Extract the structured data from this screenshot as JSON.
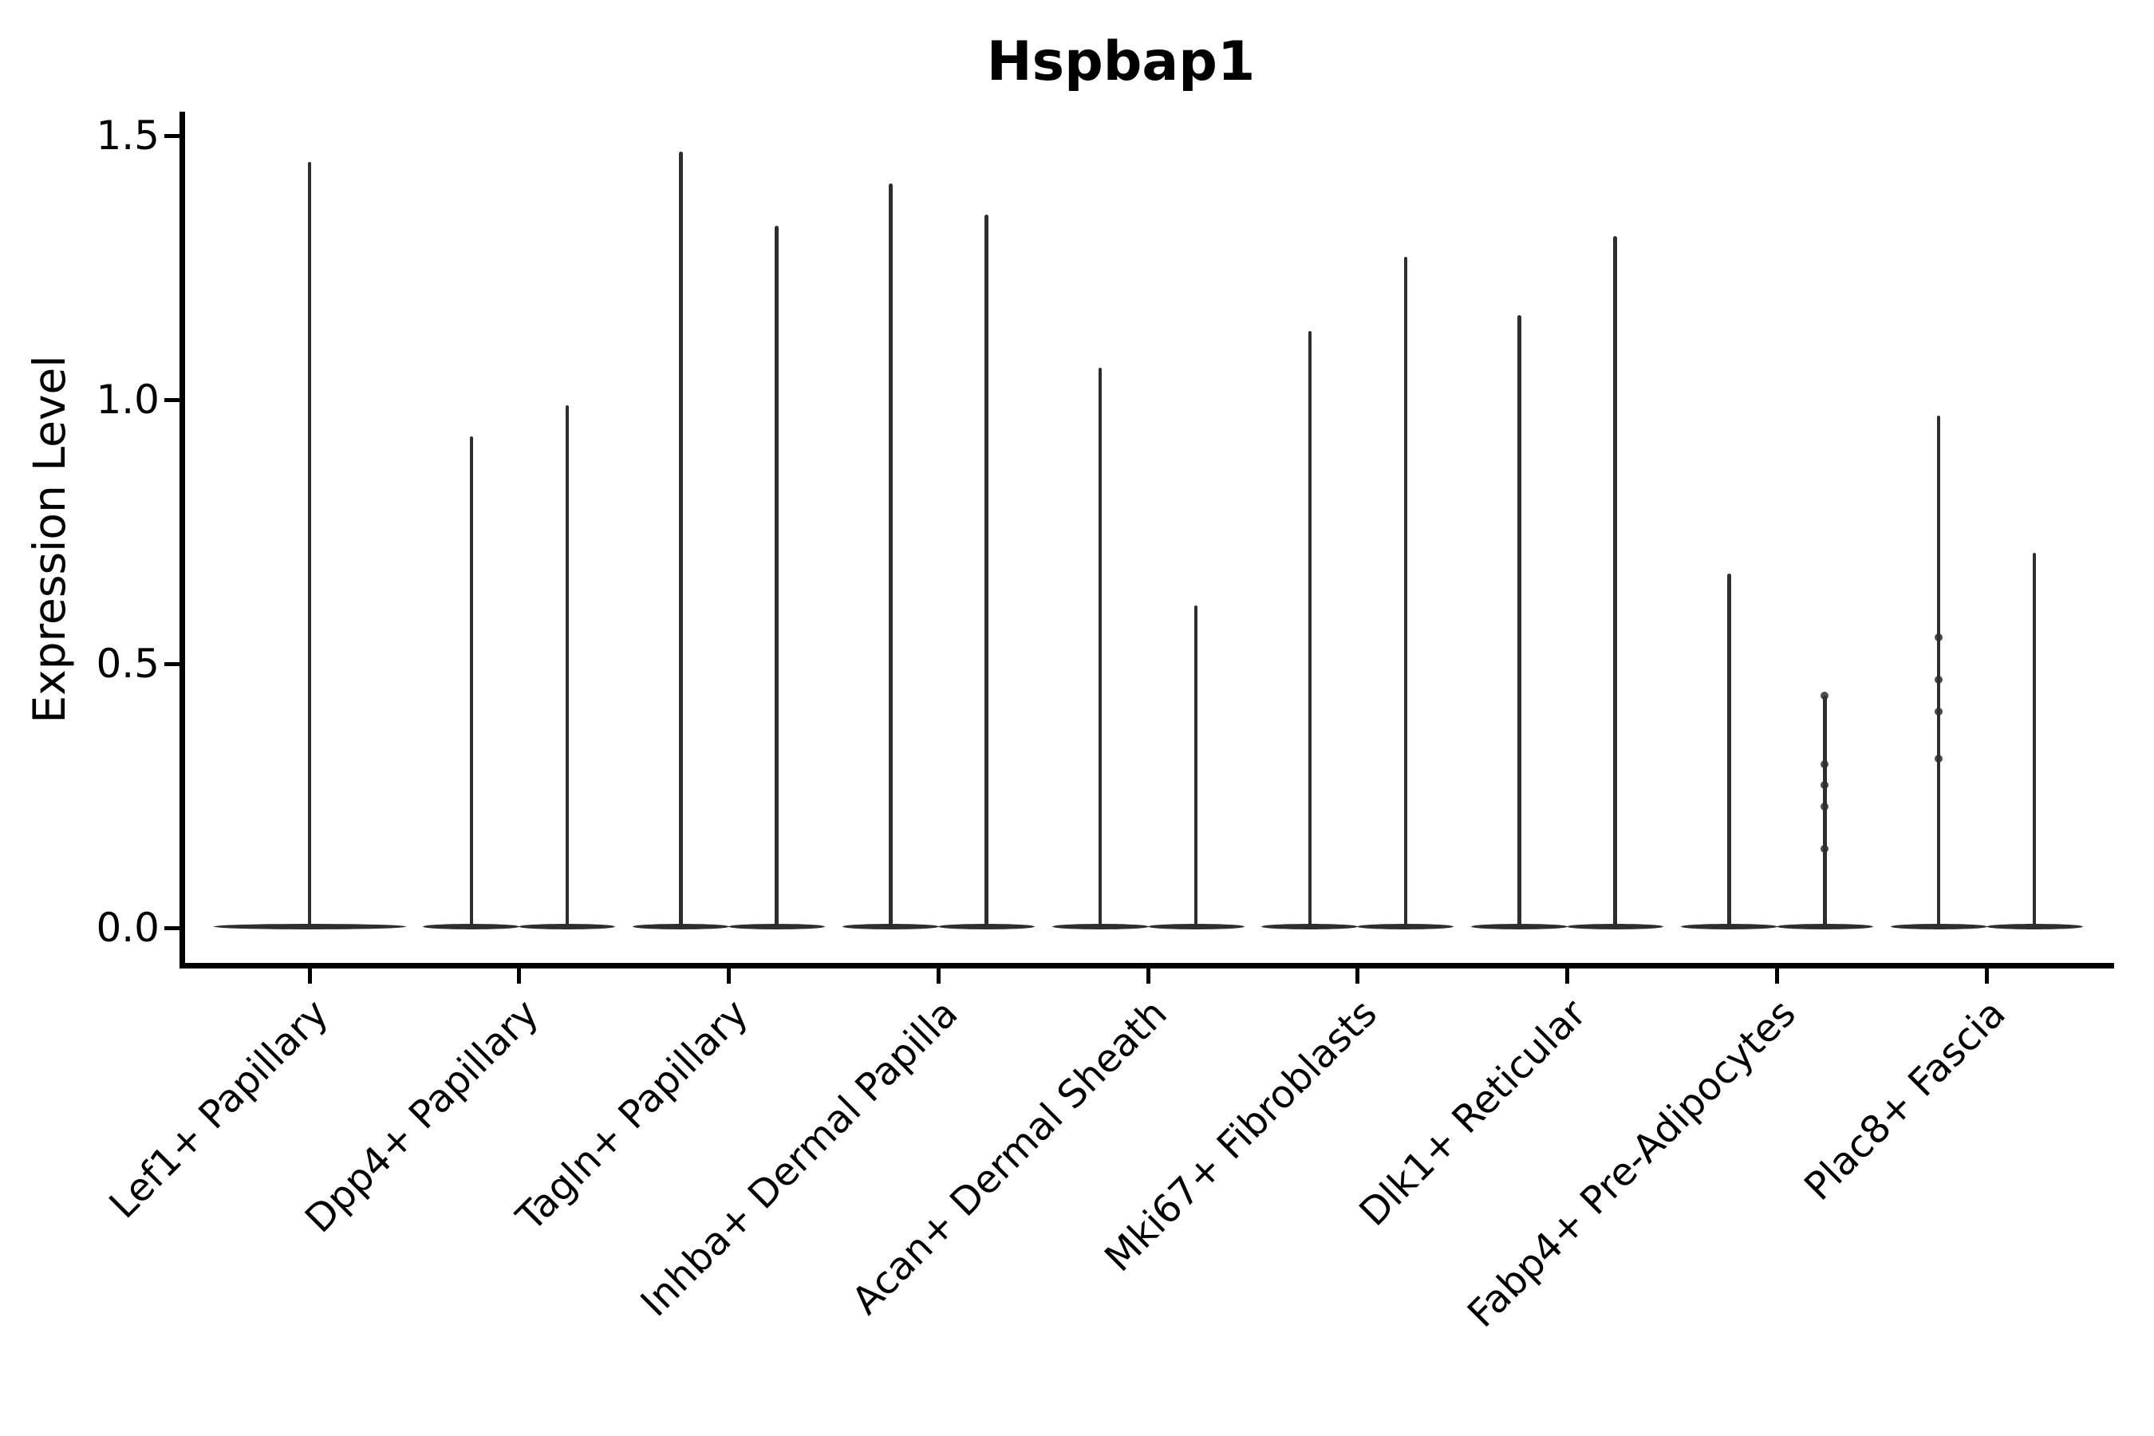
{
  "chart_data": {
    "type": "violin",
    "title": "Hspbap1",
    "xlabel": "",
    "ylabel": "Expression Level",
    "ylim": [
      -0.07,
      1.55
    ],
    "grid": false,
    "legend": null,
    "yticks": [
      {
        "value": 0.0,
        "label": "0.0"
      },
      {
        "value": 0.5,
        "label": "0.5"
      },
      {
        "value": 1.0,
        "label": "1.0"
      },
      {
        "value": 1.5,
        "label": "1.5"
      }
    ],
    "categories": [
      {
        "label": "Lef1+ Papillary",
        "violins": [
          {
            "offset": 0,
            "base_width": 241,
            "max": 1.45,
            "points": []
          }
        ]
      },
      {
        "label": "Dpp4+ Papillary",
        "violins": [
          {
            "offset": -60,
            "base_width": 121,
            "max": 0.93,
            "points": []
          },
          {
            "offset": 60,
            "base_width": 121,
            "max": 0.99,
            "points": []
          }
        ]
      },
      {
        "label": "Tagln+ Papillary",
        "violins": [
          {
            "offset": -60,
            "base_width": 121,
            "max": 1.47,
            "points": []
          },
          {
            "offset": 60,
            "base_width": 121,
            "max": 1.33,
            "points": []
          }
        ]
      },
      {
        "label": "Inhba+ Dermal Papilla",
        "violins": [
          {
            "offset": -60,
            "base_width": 121,
            "max": 1.41,
            "points": []
          },
          {
            "offset": 60,
            "base_width": 121,
            "max": 1.35,
            "points": []
          }
        ]
      },
      {
        "label": "Acan+ Dermal Sheath",
        "violins": [
          {
            "offset": -60,
            "base_width": 121,
            "max": 1.06,
            "points": []
          },
          {
            "offset": 60,
            "base_width": 121,
            "max": 0.61,
            "points": []
          }
        ]
      },
      {
        "label": "Mki67+ Fibroblasts",
        "violins": [
          {
            "offset": -60,
            "base_width": 121,
            "max": 1.13,
            "points": []
          },
          {
            "offset": 60,
            "base_width": 121,
            "max": 1.27,
            "points": []
          }
        ]
      },
      {
        "label": "Dlk1+ Reticular",
        "violins": [
          {
            "offset": -60,
            "base_width": 121,
            "max": 1.16,
            "points": []
          },
          {
            "offset": 60,
            "base_width": 121,
            "max": 1.31,
            "points": []
          }
        ]
      },
      {
        "label": "Fabp4+ Pre-Adipocytes",
        "violins": [
          {
            "offset": -60,
            "base_width": 121,
            "max": 0.67,
            "points": []
          },
          {
            "offset": 60,
            "base_width": 121,
            "max": 0.44,
            "points": [
              0.44,
              0.31,
              0.27,
              0.23,
              0.15
            ]
          }
        ]
      },
      {
        "label": "Plac8+ Fascia",
        "violins": [
          {
            "offset": -60,
            "base_width": 121,
            "max": 0.97,
            "points": [
              0.55,
              0.47,
              0.41,
              0.32
            ]
          },
          {
            "offset": 60,
            "base_width": 121,
            "max": 0.71,
            "points": []
          }
        ]
      }
    ],
    "colors": {
      "violin": "#2e2e2e",
      "axis": "#000000",
      "text": "#000000",
      "background": "#ffffff"
    }
  }
}
